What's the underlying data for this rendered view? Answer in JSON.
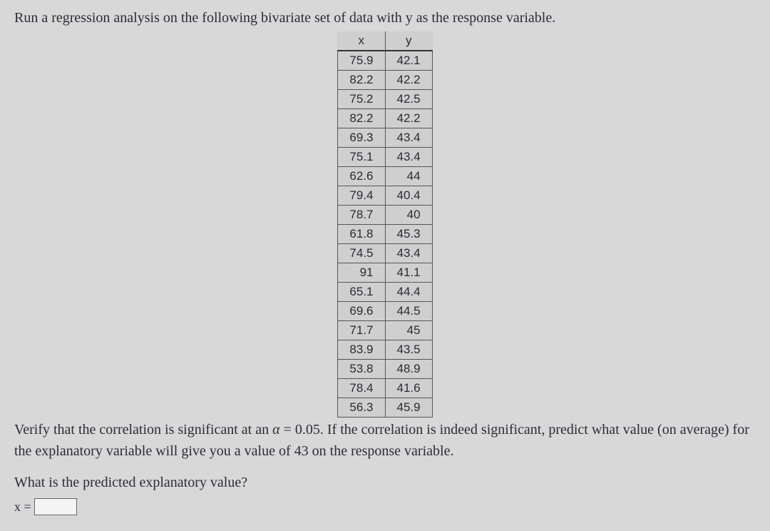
{
  "intro_text": "Run a regression analysis on the following bivariate set of data with y as the response variable.",
  "table": {
    "headers": [
      "x",
      "y"
    ],
    "rows": [
      [
        "75.9",
        "42.1"
      ],
      [
        "82.2",
        "42.2"
      ],
      [
        "75.2",
        "42.5"
      ],
      [
        "82.2",
        "42.2"
      ],
      [
        "69.3",
        "43.4"
      ],
      [
        "75.1",
        "43.4"
      ],
      [
        "62.6",
        "44"
      ],
      [
        "79.4",
        "40.4"
      ],
      [
        "78.7",
        "40"
      ],
      [
        "61.8",
        "45.3"
      ],
      [
        "74.5",
        "43.4"
      ],
      [
        "91",
        "41.1"
      ],
      [
        "65.1",
        "44.4"
      ],
      [
        "69.6",
        "44.5"
      ],
      [
        "71.7",
        "45"
      ],
      [
        "83.9",
        "43.5"
      ],
      [
        "53.8",
        "48.9"
      ],
      [
        "78.4",
        "41.6"
      ],
      [
        "56.3",
        "45.9"
      ]
    ]
  },
  "verify_prefix": "Verify that the correlation is significant at an ",
  "alpha_symbol": "α",
  "alpha_eq": " = ",
  "alpha_value": "0.05",
  "verify_suffix": ". If the correlation is indeed significant, predict what value (on average) for the explanatory variable will give you a value of 43 on the response variable.",
  "question2": "What is the predicted explanatory value?",
  "answer_label": "x ="
}
